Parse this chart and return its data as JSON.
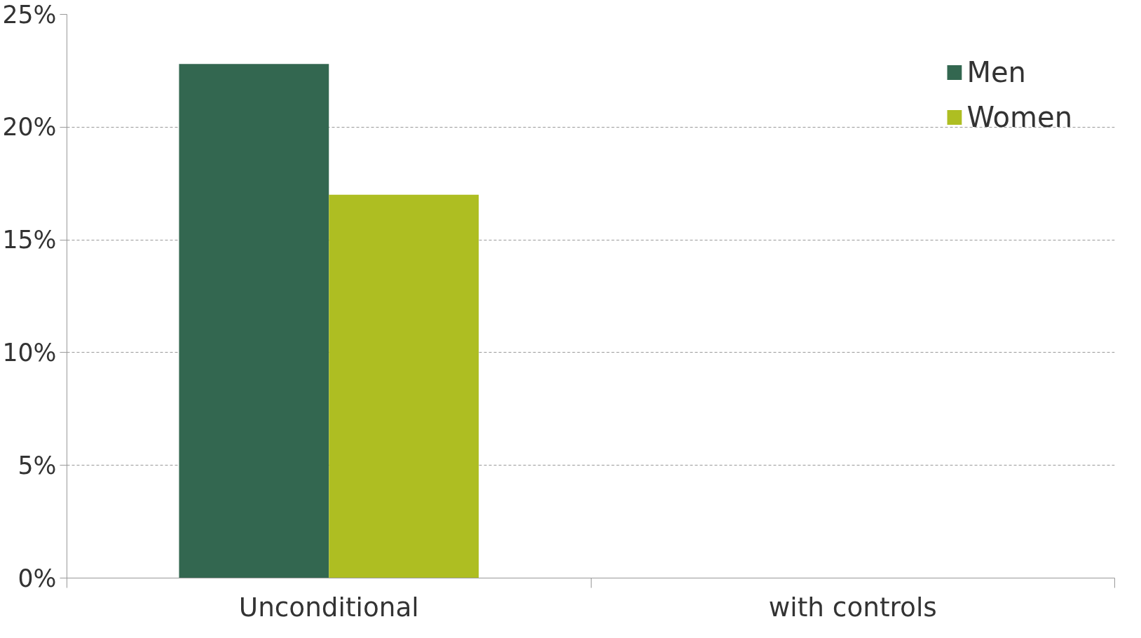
{
  "chart_data": {
    "type": "bar",
    "categories": [
      "Unconditional",
      "with controls"
    ],
    "series": [
      {
        "name": "Men",
        "color": "#336750",
        "values": [
          22.8,
          null
        ]
      },
      {
        "name": "Women",
        "color": "#aebe22",
        "values": [
          17.0,
          null
        ]
      }
    ],
    "ylim": [
      0,
      25
    ],
    "yticks": [
      {
        "value": 0,
        "label": "0%"
      },
      {
        "value": 5,
        "label": "5%"
      },
      {
        "value": 10,
        "label": "10%"
      },
      {
        "value": 15,
        "label": "15%"
      },
      {
        "value": 20,
        "label": "20%"
      },
      {
        "value": 25,
        "label": "25%"
      }
    ],
    "grid": "y",
    "legend": "top right"
  }
}
